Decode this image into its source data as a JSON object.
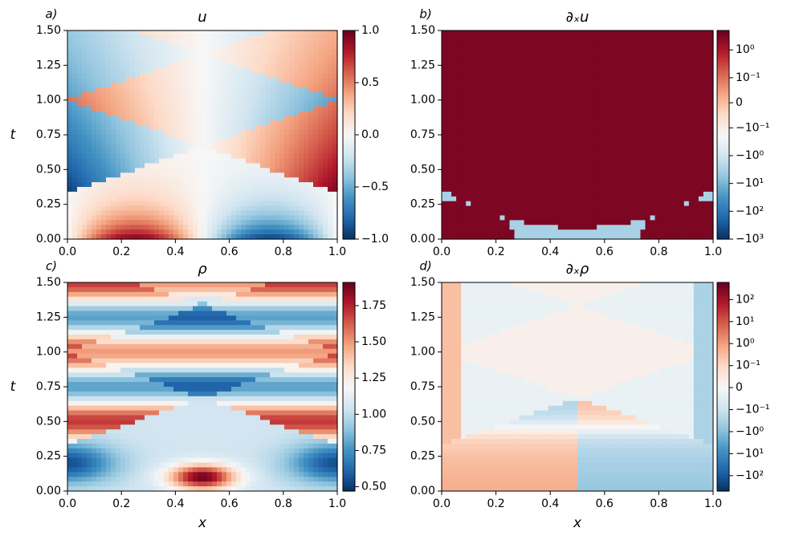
{
  "chart_data": [
    {
      "type": "heatmap",
      "panel_label": "a)",
      "title": "u",
      "ylabel": "t",
      "cmap": "RdBu_r",
      "xlim": [
        0,
        1
      ],
      "xticks": [
        {
          "value": 0,
          "label": "0.0"
        },
        0.2,
        0.4,
        0.6,
        0.8,
        {
          "value": 1,
          "label": "1.0"
        }
      ],
      "ylim": [
        0,
        1.5
      ],
      "yticks": [
        {
          "value": 0,
          "label": "0.00"
        },
        0.25,
        {
          "value": 0.5,
          "label": "0.50"
        },
        0.75,
        {
          "value": 1,
          "label": "1.00"
        },
        1.25,
        {
          "value": 1.5,
          "label": "1.50"
        }
      ],
      "colorbar": {
        "scale": "linear",
        "clim": [
          -1,
          1
        ],
        "ticks": [
          {
            "value": -1,
            "label": "−1.0"
          },
          {
            "value": -0.5,
            "label": "−0.5"
          },
          {
            "value": 0,
            "label": "0.0"
          },
          0.5,
          {
            "value": 1,
            "label": "1.0"
          }
        ]
      }
    },
    {
      "type": "heatmap",
      "panel_label": "b)",
      "title": "∂ₓu",
      "cmap": "RdBu_r",
      "xlim": [
        0,
        1
      ],
      "xticks": [
        {
          "value": 0,
          "label": "0.0"
        },
        0.2,
        0.4,
        0.6,
        0.8,
        {
          "value": 1,
          "label": "1.0"
        }
      ],
      "ylim": [
        0,
        1.5
      ],
      "yticks": [
        {
          "value": 0,
          "label": "0.00"
        },
        0.25,
        {
          "value": 0.5,
          "label": "0.50"
        },
        0.75,
        {
          "value": 1,
          "label": "1.00"
        },
        1.25,
        {
          "value": 1.5,
          "label": "1.50"
        }
      ],
      "colorbar": {
        "scale": "symlog",
        "linthresh": 0.1,
        "linscale": 0.9,
        "clim": [
          -1000,
          5
        ],
        "ticks": [
          {
            "value": 1,
            "label": "10⁰"
          },
          {
            "value": 0.1,
            "label": "10⁻¹"
          },
          0,
          {
            "value": -0.1,
            "label": "−10⁻¹"
          },
          {
            "value": -1,
            "label": "−10⁰"
          },
          {
            "value": -10,
            "label": "−10¹"
          },
          {
            "value": -100,
            "label": "−10²"
          },
          {
            "value": -1000,
            "label": "−10³"
          }
        ]
      }
    },
    {
      "type": "heatmap",
      "panel_label": "c)",
      "title": "ρ",
      "ylabel": "t",
      "xlabel": "x",
      "cmap": "RdBu_r",
      "xlim": [
        0,
        1
      ],
      "xticks": [
        {
          "value": 0,
          "label": "0.0"
        },
        0.2,
        0.4,
        0.6,
        0.8,
        {
          "value": 1,
          "label": "1.0"
        }
      ],
      "ylim": [
        0,
        1.5
      ],
      "yticks": [
        {
          "value": 0,
          "label": "0.00"
        },
        0.25,
        {
          "value": 0.5,
          "label": "0.50"
        },
        0.75,
        {
          "value": 1,
          "label": "1.00"
        },
        1.25,
        {
          "value": 1.5,
          "label": "1.50"
        }
      ],
      "colorbar": {
        "scale": "linear",
        "clim": [
          0.47,
          1.91
        ],
        "ticks": [
          {
            "value": 0.5,
            "label": "0.50"
          },
          0.75,
          {
            "value": 1,
            "label": "1.00"
          },
          1.25,
          {
            "value": 1.5,
            "label": "1.50"
          },
          1.75
        ]
      }
    },
    {
      "type": "heatmap",
      "panel_label": "d)",
      "title": "∂ₓρ",
      "xlabel": "x",
      "cmap": "RdBu_r",
      "xlim": [
        0,
        1
      ],
      "xticks": [
        {
          "value": 0,
          "label": "0.0"
        },
        0.2,
        0.4,
        0.6,
        0.8,
        {
          "value": 1,
          "label": "1.0"
        }
      ],
      "ylim": [
        0,
        1.5
      ],
      "yticks": [
        {
          "value": 0,
          "label": "0.00"
        },
        0.25,
        {
          "value": 0.5,
          "label": "0.50"
        },
        0.75,
        {
          "value": 1,
          "label": "1.00"
        },
        1.25,
        {
          "value": 1.5,
          "label": "1.50"
        }
      ],
      "colorbar": {
        "scale": "symlog",
        "linthresh": 0.1,
        "linscale": 1,
        "clim": [
          -500,
          600
        ],
        "ticks": [
          {
            "value": 100,
            "label": "10²"
          },
          {
            "value": 10,
            "label": "10¹"
          },
          {
            "value": 1,
            "label": "10⁰"
          },
          {
            "value": 0.1,
            "label": "10⁻¹"
          },
          0,
          {
            "value": -0.1,
            "label": "−10⁻¹"
          },
          {
            "value": -1,
            "label": "−10⁰"
          },
          {
            "value": -10,
            "label": "−10¹"
          },
          {
            "value": -100,
            "label": "−10²"
          }
        ]
      }
    }
  ]
}
